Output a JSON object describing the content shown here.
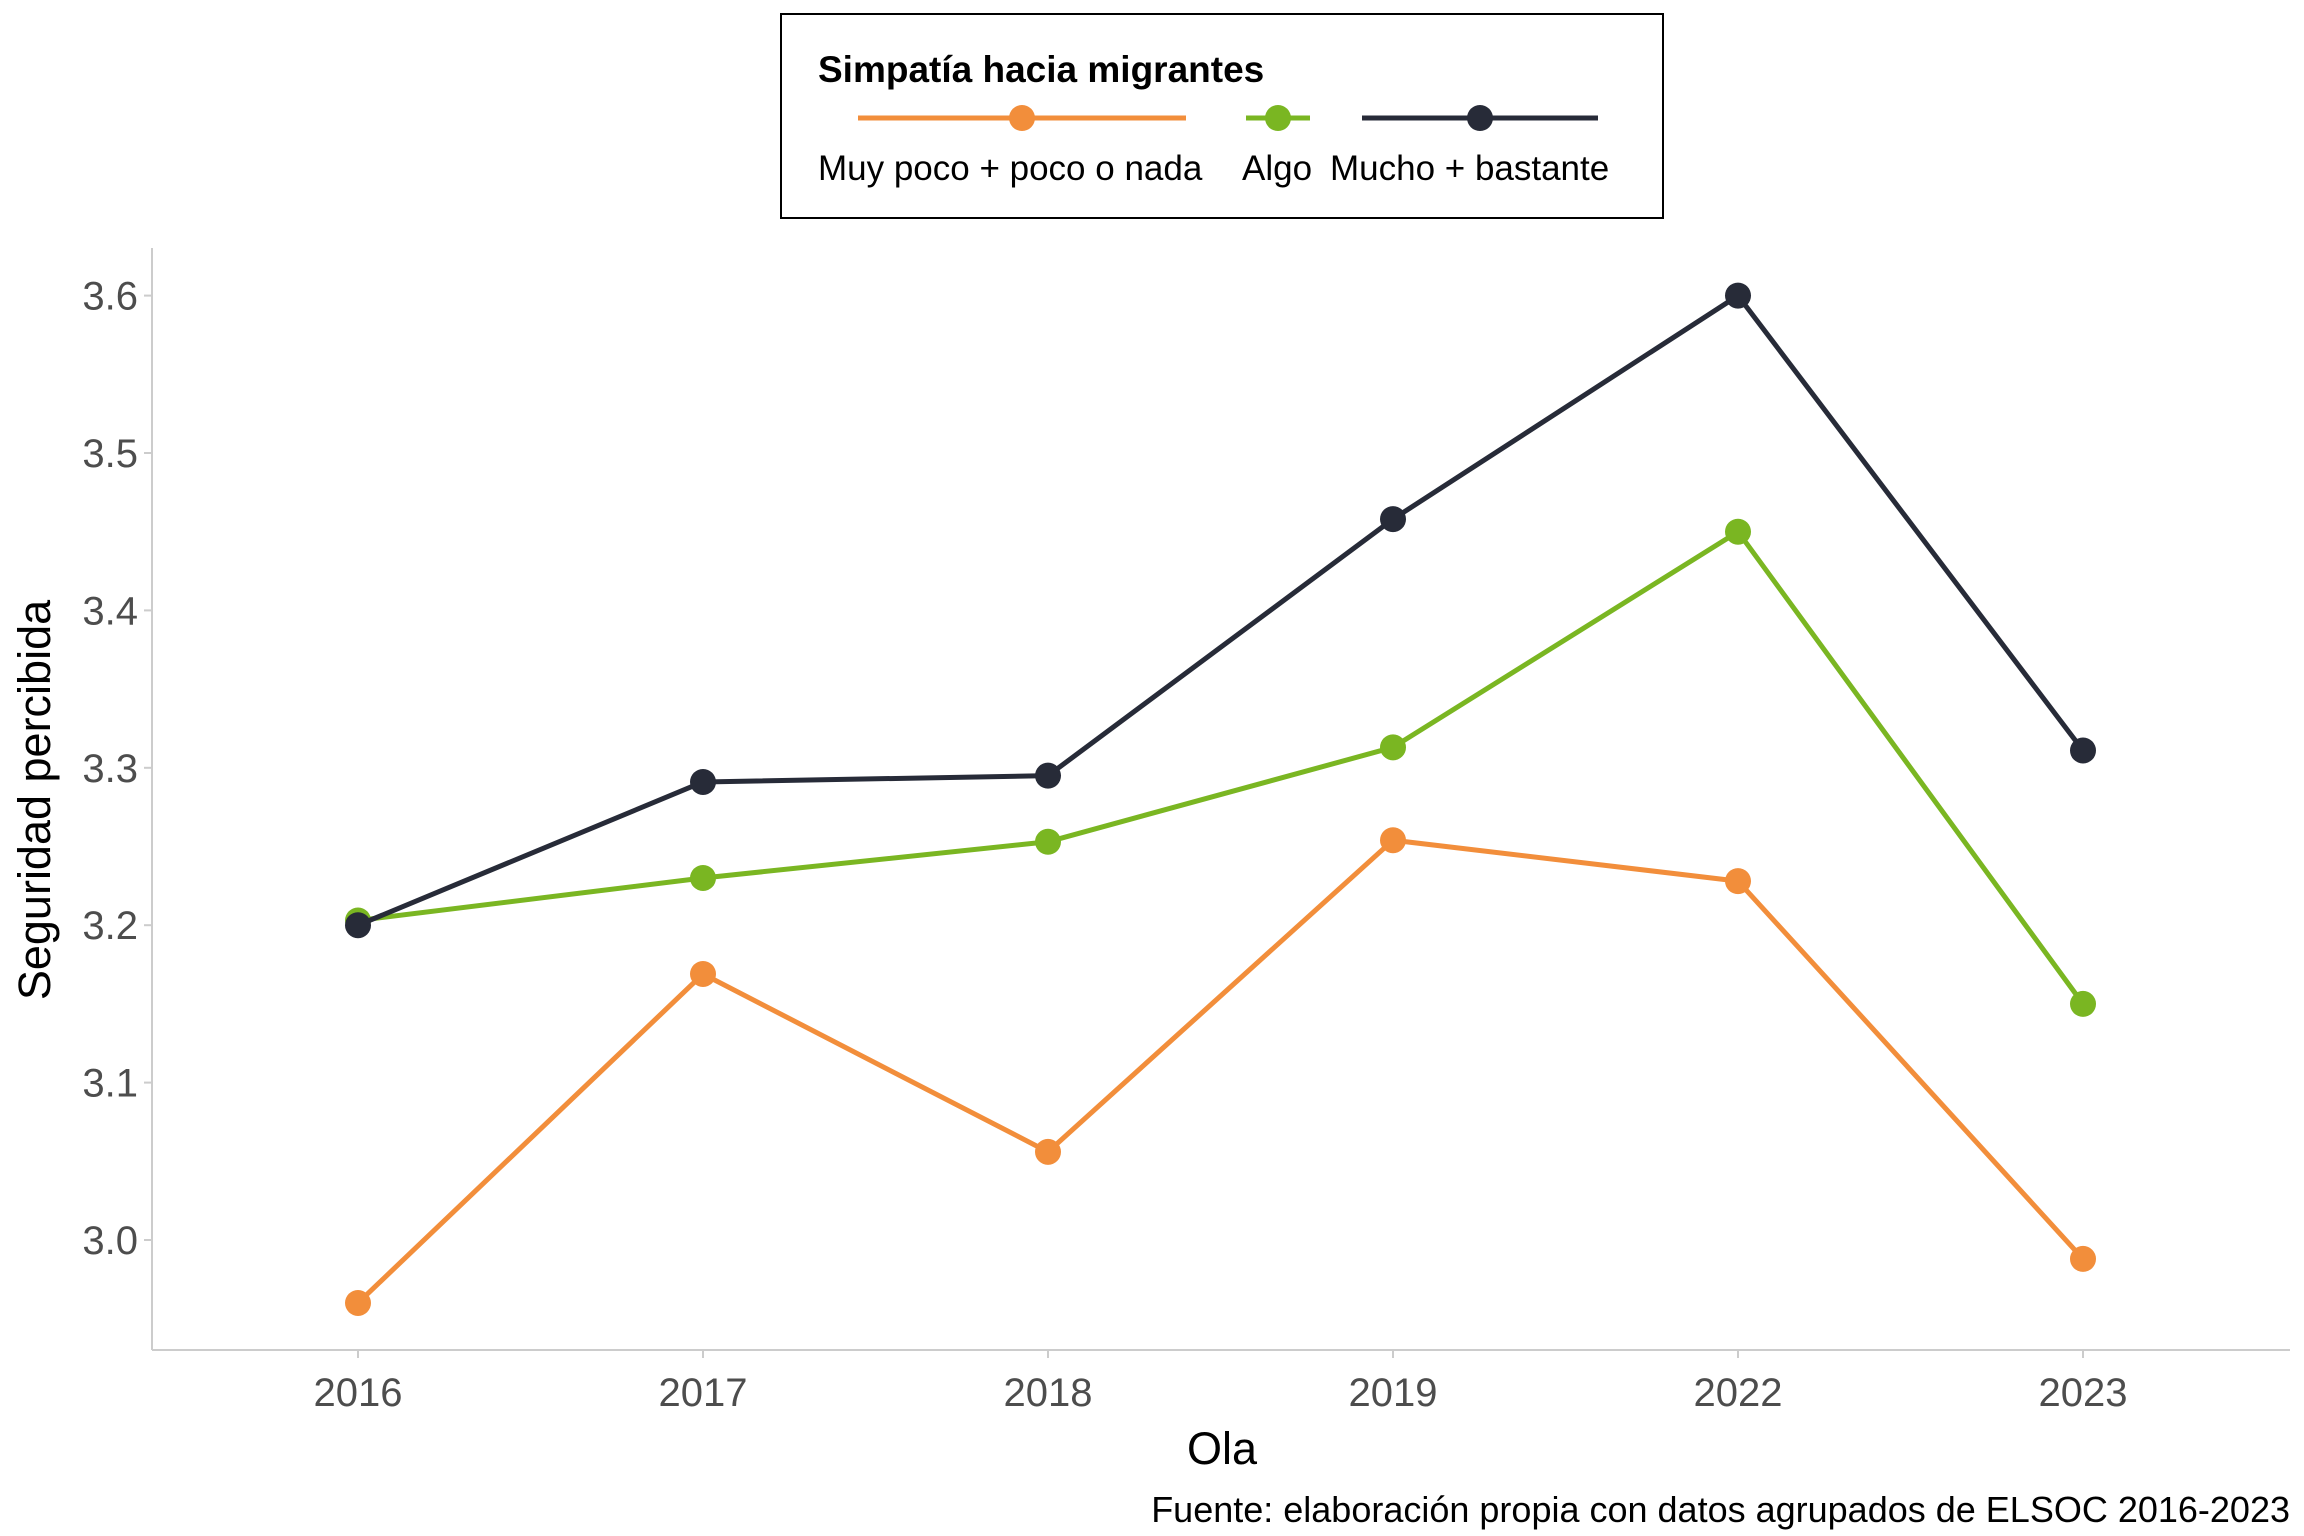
{
  "chart_data": {
    "type": "line",
    "xlabel": "Ola",
    "ylabel": "Seguridad percibida",
    "caption": "Fuente: elaboración propia con datos agrupados de ELSOC 2016-2023",
    "categories": [
      "2016",
      "2017",
      "2018",
      "2019",
      "2022",
      "2023"
    ],
    "ylim": [
      2.93,
      3.63
    ],
    "yticks": [
      "3.0",
      "3.1",
      "3.2",
      "3.3",
      "3.4",
      "3.5",
      "3.6"
    ],
    "grid": false,
    "legend": {
      "title": "Simpatía hacia migrantes",
      "position": "top-center",
      "entries": [
        "Muy poco + poco o nada",
        "Algo",
        "Mucho + bastante"
      ]
    },
    "series": [
      {
        "name": "Muy poco + poco o nada",
        "color": "#F28E3B",
        "values": [
          2.96,
          3.169,
          3.056,
          3.254,
          3.228,
          2.988
        ]
      },
      {
        "name": "Algo",
        "color": "#7AB622",
        "values": [
          3.203,
          3.23,
          3.253,
          3.313,
          3.45,
          3.15
        ]
      },
      {
        "name": "Mucho + bastante",
        "color": "#272B38",
        "values": [
          3.2,
          3.291,
          3.295,
          3.458,
          3.6,
          3.311
        ]
      }
    ]
  }
}
